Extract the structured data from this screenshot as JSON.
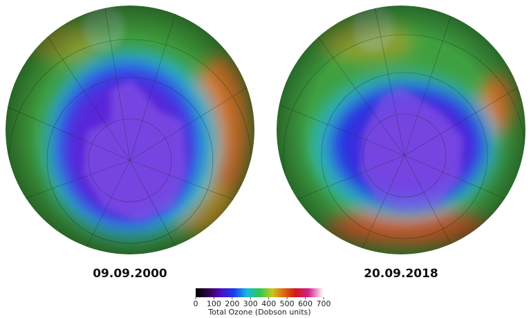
{
  "panels": [
    {
      "date": "09.09.2000"
    },
    {
      "date": "20.09.2018"
    }
  ],
  "colorbar": {
    "label": "Total Ozone (Dobson units)",
    "lim": [
      0,
      700
    ],
    "ticks": [
      0,
      100,
      200,
      300,
      400,
      500,
      600,
      700
    ]
  }
}
